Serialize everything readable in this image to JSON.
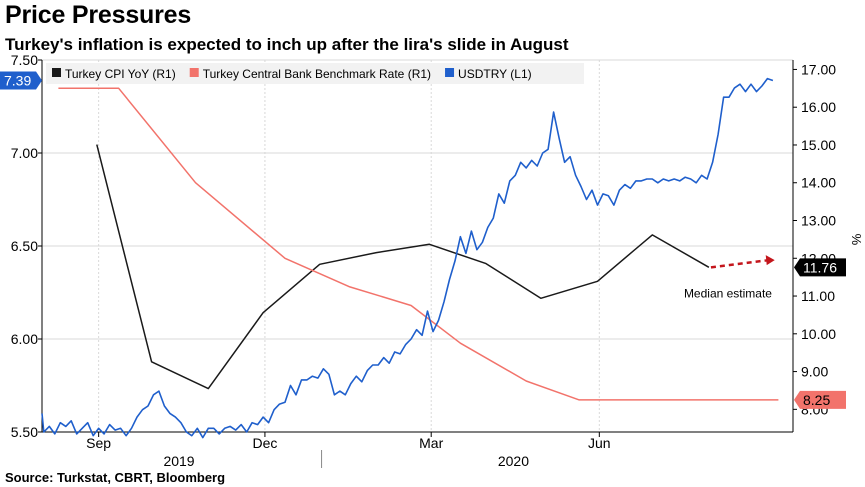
{
  "title": "Price Pressures",
  "subtitle": "Turkey's inflation is expected to inch up after the lira's slide in August",
  "source": "Source: Turkstat, CBRT, Bloomberg",
  "colors": {
    "cpi": "#1a1a1a",
    "policy_rate": "#f2736b",
    "usdtry": "#1f5fcc",
    "forecast": "#c4161c",
    "grid": "#d8d8d8",
    "axis": "#000000"
  },
  "chart_data": {
    "type": "line",
    "title": "Price Pressures",
    "subtitle": "Turkey's inflation is expected to inch up after the lira's slide in August",
    "x_range": [
      "2019-08-01",
      "2020-09-15"
    ],
    "x_ticks": [
      {
        "date": "2019-09-01",
        "label": "Sep"
      },
      {
        "date": "2019-12-01",
        "label": "Dec"
      },
      {
        "date": "2020-03-01",
        "label": "Mar"
      },
      {
        "date": "2020-06-01",
        "label": "Jun"
      }
    ],
    "x_year_labels": [
      {
        "date": "2019-10-15",
        "label": "2019"
      },
      {
        "date": "2020-04-15",
        "label": "2020"
      }
    ],
    "x_year_divider": "2020-01-01",
    "y_left": {
      "range": [
        5.5,
        7.5
      ],
      "ticks": [
        5.5,
        6.0,
        6.5,
        7.0,
        7.5
      ],
      "tick_labels": [
        "5.50",
        "6.00",
        "6.50",
        "7.00",
        "7.50"
      ]
    },
    "y_right": {
      "label": "%",
      "range": [
        7.4,
        17.25
      ],
      "ticks": [
        8,
        9,
        10,
        11,
        12,
        13,
        14,
        15,
        16,
        17
      ],
      "tick_labels": [
        "8.00",
        "9.00",
        "10.00",
        "11.00",
        "12.00",
        "13.00",
        "14.00",
        "15.00",
        "16.00",
        "17.00"
      ]
    },
    "grid": true,
    "legend_position": "top",
    "series": [
      {
        "name": "Turkey CPI YoY (R1)",
        "axis": "right",
        "color": "#1a1a1a",
        "points": [
          [
            "2019-08-31",
            15.01
          ],
          [
            "2019-09-30",
            9.26
          ],
          [
            "2019-10-31",
            8.55
          ],
          [
            "2019-11-30",
            10.56
          ],
          [
            "2019-12-31",
            11.84
          ],
          [
            "2020-01-31",
            12.15
          ],
          [
            "2020-02-29",
            12.37
          ],
          [
            "2020-03-31",
            11.86
          ],
          [
            "2020-04-30",
            10.94
          ],
          [
            "2020-05-31",
            11.39
          ],
          [
            "2020-06-30",
            12.62
          ],
          [
            "2020-07-31",
            11.76
          ]
        ]
      },
      {
        "name": "Turkey Central Bank Benchmark Rate (R1)",
        "axis": "right",
        "color": "#f2736b",
        "points": [
          [
            "2019-08-10",
            16.5
          ],
          [
            "2019-09-12",
            16.5
          ],
          [
            "2019-10-24",
            14.0
          ],
          [
            "2019-12-12",
            12.0
          ],
          [
            "2020-01-16",
            11.25
          ],
          [
            "2020-02-19",
            10.75
          ],
          [
            "2020-03-17",
            9.75
          ],
          [
            "2020-04-22",
            8.75
          ],
          [
            "2020-05-21",
            8.25
          ],
          [
            "2020-09-07",
            8.25
          ]
        ],
        "last_value_label": "8.25"
      },
      {
        "name": "USDTRY (L1)",
        "axis": "left",
        "color": "#1f5fcc",
        "points": [
          [
            "2019-08-01",
            5.6
          ],
          [
            "2019-08-02",
            5.5
          ],
          [
            "2019-08-05",
            5.53
          ],
          [
            "2019-08-08",
            5.49
          ],
          [
            "2019-08-11",
            5.55
          ],
          [
            "2019-08-14",
            5.53
          ],
          [
            "2019-08-17",
            5.56
          ],
          [
            "2019-08-20",
            5.49
          ],
          [
            "2019-08-23",
            5.52
          ],
          [
            "2019-08-26",
            5.55
          ],
          [
            "2019-08-29",
            5.48
          ],
          [
            "2019-09-01",
            5.52
          ],
          [
            "2019-09-04",
            5.49
          ],
          [
            "2019-09-07",
            5.54
          ],
          [
            "2019-09-10",
            5.51
          ],
          [
            "2019-09-13",
            5.52
          ],
          [
            "2019-09-16",
            5.48
          ],
          [
            "2019-09-19",
            5.52
          ],
          [
            "2019-09-22",
            5.58
          ],
          [
            "2019-09-25",
            5.62
          ],
          [
            "2019-09-28",
            5.64
          ],
          [
            "2019-10-01",
            5.7
          ],
          [
            "2019-10-04",
            5.72
          ],
          [
            "2019-10-07",
            5.64
          ],
          [
            "2019-10-10",
            5.6
          ],
          [
            "2019-10-13",
            5.58
          ],
          [
            "2019-10-16",
            5.55
          ],
          [
            "2019-10-19",
            5.5
          ],
          [
            "2019-10-22",
            5.48
          ],
          [
            "2019-10-25",
            5.52
          ],
          [
            "2019-10-28",
            5.47
          ],
          [
            "2019-10-31",
            5.52
          ],
          [
            "2019-11-03",
            5.52
          ],
          [
            "2019-11-06",
            5.49
          ],
          [
            "2019-11-09",
            5.52
          ],
          [
            "2019-11-12",
            5.53
          ],
          [
            "2019-11-15",
            5.51
          ],
          [
            "2019-11-18",
            5.54
          ],
          [
            "2019-11-21",
            5.5
          ],
          [
            "2019-11-24",
            5.55
          ],
          [
            "2019-11-27",
            5.54
          ],
          [
            "2019-11-30",
            5.58
          ],
          [
            "2019-12-03",
            5.55
          ],
          [
            "2019-12-06",
            5.62
          ],
          [
            "2019-12-09",
            5.65
          ],
          [
            "2019-12-12",
            5.66
          ],
          [
            "2019-12-15",
            5.75
          ],
          [
            "2019-12-18",
            5.7
          ],
          [
            "2019-12-21",
            5.78
          ],
          [
            "2019-12-24",
            5.78
          ],
          [
            "2019-12-27",
            5.8
          ],
          [
            "2019-12-30",
            5.79
          ],
          [
            "2020-01-02",
            5.84
          ],
          [
            "2020-01-05",
            5.81
          ],
          [
            "2020-01-08",
            5.7
          ],
          [
            "2020-01-11",
            5.72
          ],
          [
            "2020-01-14",
            5.7
          ],
          [
            "2020-01-17",
            5.76
          ],
          [
            "2020-01-20",
            5.8
          ],
          [
            "2020-01-23",
            5.77
          ],
          [
            "2020-01-26",
            5.83
          ],
          [
            "2020-01-29",
            5.86
          ],
          [
            "2020-02-01",
            5.86
          ],
          [
            "2020-02-04",
            5.9
          ],
          [
            "2020-02-07",
            5.87
          ],
          [
            "2020-02-10",
            5.93
          ],
          [
            "2020-02-13",
            5.92
          ],
          [
            "2020-02-16",
            5.97
          ],
          [
            "2020-02-19",
            6.0
          ],
          [
            "2020-02-22",
            6.05
          ],
          [
            "2020-02-25",
            6.02
          ],
          [
            "2020-02-28",
            6.15
          ],
          [
            "2020-03-02",
            6.04
          ],
          [
            "2020-03-05",
            6.1
          ],
          [
            "2020-03-08",
            6.2
          ],
          [
            "2020-03-11",
            6.32
          ],
          [
            "2020-03-14",
            6.42
          ],
          [
            "2020-03-17",
            6.55
          ],
          [
            "2020-03-20",
            6.46
          ],
          [
            "2020-03-23",
            6.58
          ],
          [
            "2020-03-26",
            6.48
          ],
          [
            "2020-03-29",
            6.52
          ],
          [
            "2020-04-01",
            6.6
          ],
          [
            "2020-04-04",
            6.65
          ],
          [
            "2020-04-07",
            6.78
          ],
          [
            "2020-04-10",
            6.73
          ],
          [
            "2020-04-13",
            6.85
          ],
          [
            "2020-04-16",
            6.88
          ],
          [
            "2020-04-19",
            6.95
          ],
          [
            "2020-04-22",
            6.92
          ],
          [
            "2020-04-25",
            6.96
          ],
          [
            "2020-04-28",
            6.93
          ],
          [
            "2020-05-01",
            7.0
          ],
          [
            "2020-05-04",
            7.02
          ],
          [
            "2020-05-07",
            7.22
          ],
          [
            "2020-05-10",
            7.08
          ],
          [
            "2020-05-13",
            6.95
          ],
          [
            "2020-05-16",
            6.98
          ],
          [
            "2020-05-19",
            6.88
          ],
          [
            "2020-05-22",
            6.82
          ],
          [
            "2020-05-25",
            6.75
          ],
          [
            "2020-05-28",
            6.8
          ],
          [
            "2020-05-31",
            6.72
          ],
          [
            "2020-06-03",
            6.78
          ],
          [
            "2020-06-06",
            6.77
          ],
          [
            "2020-06-09",
            6.72
          ],
          [
            "2020-06-12",
            6.8
          ],
          [
            "2020-06-15",
            6.83
          ],
          [
            "2020-06-18",
            6.81
          ],
          [
            "2020-06-21",
            6.85
          ],
          [
            "2020-06-24",
            6.85
          ],
          [
            "2020-06-27",
            6.86
          ],
          [
            "2020-06-30",
            6.86
          ],
          [
            "2020-07-03",
            6.84
          ],
          [
            "2020-07-06",
            6.86
          ],
          [
            "2020-07-09",
            6.85
          ],
          [
            "2020-07-12",
            6.86
          ],
          [
            "2020-07-15",
            6.85
          ],
          [
            "2020-07-18",
            6.87
          ],
          [
            "2020-07-21",
            6.86
          ],
          [
            "2020-07-24",
            6.84
          ],
          [
            "2020-07-27",
            6.88
          ],
          [
            "2020-07-30",
            6.86
          ],
          [
            "2020-08-02",
            6.95
          ],
          [
            "2020-08-05",
            7.1
          ],
          [
            "2020-08-08",
            7.3
          ],
          [
            "2020-08-11",
            7.3
          ],
          [
            "2020-08-14",
            7.35
          ],
          [
            "2020-08-17",
            7.37
          ],
          [
            "2020-08-20",
            7.33
          ],
          [
            "2020-08-23",
            7.37
          ],
          [
            "2020-08-26",
            7.33
          ],
          [
            "2020-08-29",
            7.36
          ],
          [
            "2020-09-01",
            7.4
          ],
          [
            "2020-09-04",
            7.39
          ]
        ],
        "last_value_label": "7.39"
      }
    ],
    "forecast": {
      "label": "Median estimate",
      "from": [
        "2020-07-31",
        11.76
      ],
      "to": [
        "2020-09-05",
        11.95
      ],
      "value_label": "11.76"
    }
  }
}
